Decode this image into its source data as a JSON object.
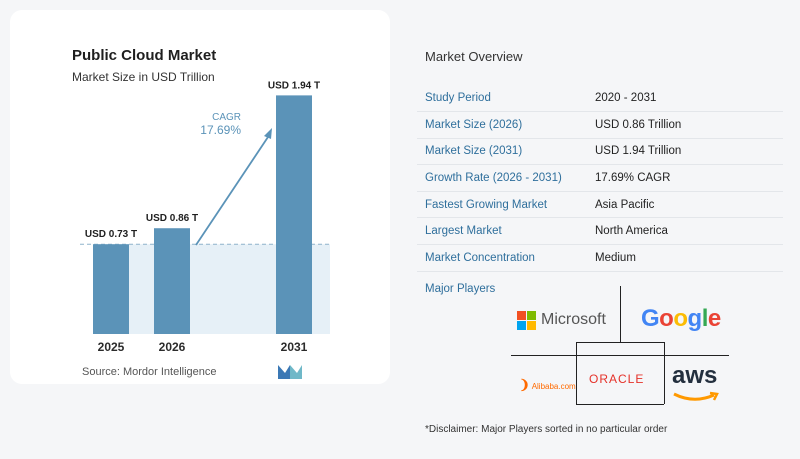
{
  "chart_data": {
    "type": "bar",
    "title": "Public Cloud Market",
    "subtitle": "Market Size in USD Trillion",
    "categories": [
      "2025",
      "2026",
      "2031"
    ],
    "values": [
      0.73,
      0.86,
      1.94
    ],
    "data_labels": [
      "USD 0.73 T",
      "USD 0.86 T",
      "USD 1.94 T"
    ],
    "annotation": {
      "label": "CAGR",
      "value": "17.69%"
    },
    "ylim": [
      0,
      2.0
    ],
    "grid": false,
    "bar_color": "#5b93b8"
  },
  "source": "Source:  Mordor Intelligence",
  "overview": {
    "title": "Market Overview",
    "rows": [
      {
        "key": "Study Period",
        "value": "2020 - 2031"
      },
      {
        "key": "Market Size (2026)",
        "value": "USD 0.86 Trillion"
      },
      {
        "key": "Market Size (2031)",
        "value": "USD 1.94 Trillion"
      },
      {
        "key": "Growth Rate (2026 - 2031)",
        "value": "17.69% CAGR"
      },
      {
        "key": "Fastest Growing Market",
        "value": "Asia Pacific"
      },
      {
        "key": "Largest Market",
        "value": "North America"
      },
      {
        "key": "Market Concentration",
        "value": "Medium"
      }
    ]
  },
  "players": {
    "title": "Major Players",
    "logos": {
      "microsoft": "Microsoft",
      "google": "Google",
      "alibaba": "Alibaba.com",
      "oracle": "ORACLE",
      "aws": "aws"
    }
  },
  "disclaimer": "*Disclaimer: Major Players sorted in no particular order"
}
